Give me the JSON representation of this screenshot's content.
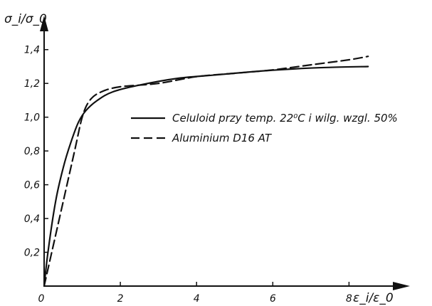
{
  "chart_data": {
    "type": "line",
    "title": "",
    "xlabel": "ε_i/ε_0",
    "ylabel": "σ_i/σ_0",
    "xlim": [
      0,
      9.3
    ],
    "ylim": [
      0,
      1.5
    ],
    "x_ticks": [
      {
        "value": 0,
        "label": "0"
      },
      {
        "value": 2,
        "label": "2"
      },
      {
        "value": 4,
        "label": "4"
      },
      {
        "value": 6,
        "label": "6"
      },
      {
        "value": 8,
        "label": "8"
      }
    ],
    "y_ticks": [
      {
        "value": 0.2,
        "label": "0,2"
      },
      {
        "value": 0.4,
        "label": "0,4"
      },
      {
        "value": 0.6,
        "label": "0,6"
      },
      {
        "value": 0.8,
        "label": "0,8"
      },
      {
        "value": 1.0,
        "label": "1,0"
      },
      {
        "value": 1.2,
        "label": "1,2"
      },
      {
        "value": 1.4,
        "label": "1,4"
      }
    ],
    "grid": false,
    "legend_position": "center-right",
    "series": [
      {
        "name": "Celuloid przy temp. 22⁰C i wilg. wzgl. 50%",
        "style": "solid",
        "color": "#111111",
        "points": [
          [
            0,
            0
          ],
          [
            0.1,
            0.2
          ],
          [
            0.3,
            0.5
          ],
          [
            0.5,
            0.7
          ],
          [
            0.7,
            0.85
          ],
          [
            0.9,
            0.97
          ],
          [
            1.1,
            1.04
          ],
          [
            1.4,
            1.1
          ],
          [
            1.8,
            1.15
          ],
          [
            2.5,
            1.19
          ],
          [
            3.5,
            1.23
          ],
          [
            4.5,
            1.25
          ],
          [
            5.5,
            1.27
          ],
          [
            6.5,
            1.285
          ],
          [
            7.5,
            1.295
          ],
          [
            8.5,
            1.3
          ]
        ]
      },
      {
        "name": "Aluminium D16 AT",
        "style": "dashed",
        "color": "#111111",
        "points": [
          [
            0,
            0
          ],
          [
            0.2,
            0.2
          ],
          [
            0.5,
            0.5
          ],
          [
            0.8,
            0.8
          ],
          [
            1.0,
            1.0
          ],
          [
            1.2,
            1.1
          ],
          [
            1.5,
            1.15
          ],
          [
            2.0,
            1.18
          ],
          [
            3.0,
            1.2
          ],
          [
            4.0,
            1.24
          ],
          [
            5.0,
            1.26
          ],
          [
            6.0,
            1.28
          ],
          [
            7.0,
            1.31
          ],
          [
            8.0,
            1.34
          ],
          [
            8.5,
            1.36
          ]
        ]
      }
    ]
  }
}
